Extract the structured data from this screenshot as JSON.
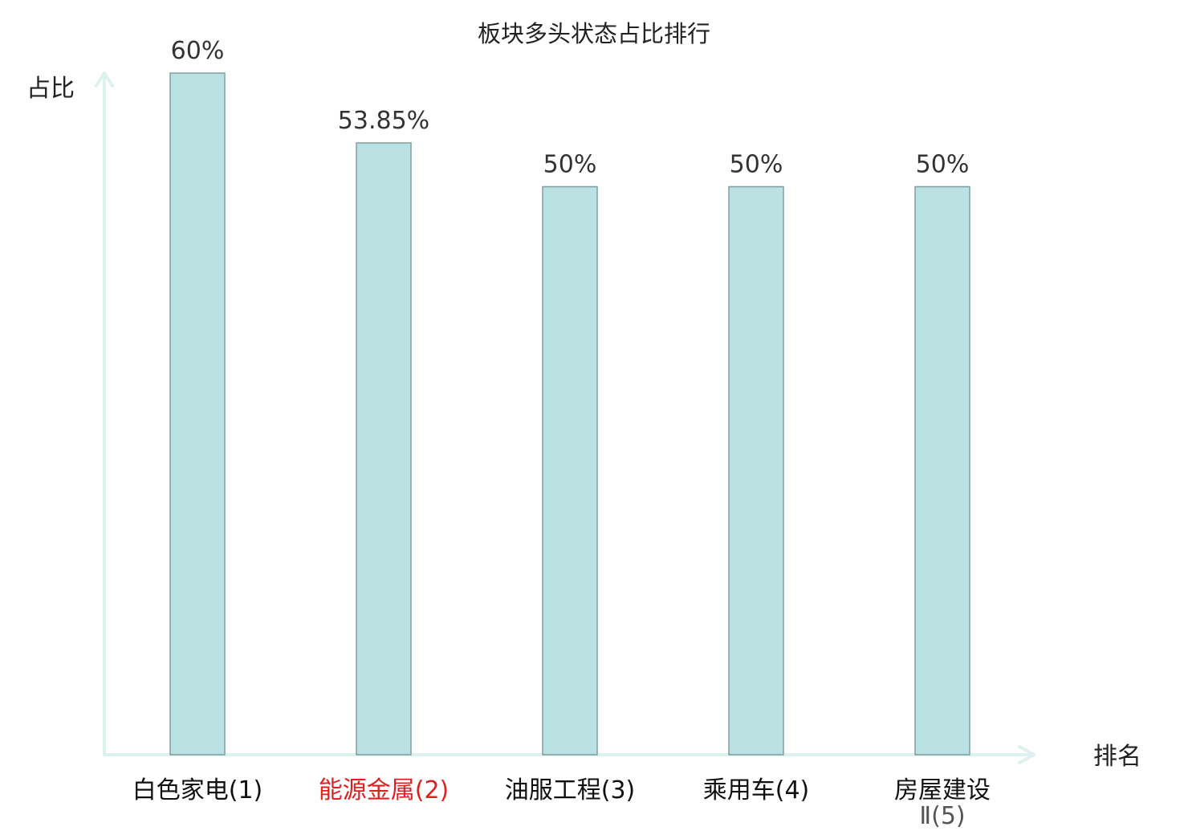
{
  "chart_data": {
    "type": "bar",
    "title": "板块多头状态占比排行",
    "ylabel": "占比",
    "xlabel": "排名",
    "ylim": [
      0,
      60
    ],
    "grid": false,
    "categories": [
      {
        "name": "白色家电",
        "rank": "(1)",
        "highlight": false
      },
      {
        "name": "能源金属",
        "rank": "(2)",
        "highlight": true
      },
      {
        "name": "油服工程",
        "rank": "(3)",
        "highlight": false
      },
      {
        "name": "乘用车",
        "rank": "(4)",
        "highlight": false
      },
      {
        "name": "房屋建设",
        "name_line2": "Ⅱ",
        "rank": "(5)",
        "highlight": false
      }
    ],
    "values": [
      60,
      53.85,
      50,
      50,
      50
    ],
    "value_labels": [
      "60%",
      "53.85%",
      "50%",
      "50%",
      "50%"
    ]
  },
  "colors": {
    "bar_fill": "#bbe0e1",
    "bar_stroke": "#7fa0a3",
    "axis": "#ddf1ef",
    "highlight": "#e02020",
    "text": "#111111"
  }
}
